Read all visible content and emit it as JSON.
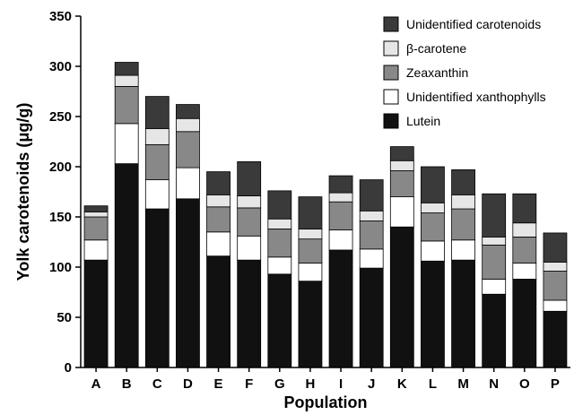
{
  "chart_data": {
    "type": "bar",
    "stacked": true,
    "xlabel": "Population",
    "ylabel": "Yolk carotenoids (μg/g)",
    "ylim": [
      0,
      350
    ],
    "yticks": [
      0,
      50,
      100,
      150,
      200,
      250,
      300,
      350
    ],
    "legend_position": "top-right",
    "categories": [
      "A",
      "B",
      "C",
      "D",
      "E",
      "F",
      "G",
      "H",
      "I",
      "J",
      "K",
      "L",
      "M",
      "N",
      "O",
      "P"
    ],
    "series": [
      {
        "name": "Lutein",
        "color": "#111111",
        "values": [
          107,
          203,
          158,
          168,
          111,
          107,
          93,
          86,
          117,
          99,
          140,
          106,
          107,
          73,
          88,
          56
        ]
      },
      {
        "name": "Unidentified xanthophylls",
        "color": "#ffffff",
        "values": [
          20,
          40,
          29,
          31,
          24,
          24,
          17,
          18,
          20,
          19,
          30,
          20,
          20,
          15,
          16,
          11
        ]
      },
      {
        "name": "Zeaxanthin",
        "color": "#888888",
        "values": [
          23,
          37,
          35,
          36,
          25,
          28,
          28,
          24,
          28,
          28,
          26,
          28,
          31,
          34,
          26,
          29
        ]
      },
      {
        "name": "β-carotene",
        "color": "#e6e6e6",
        "values": [
          5,
          11,
          16,
          13,
          12,
          12,
          10,
          10,
          9,
          10,
          10,
          10,
          14,
          8,
          14,
          9
        ]
      },
      {
        "name": "Unidentified carotenoids",
        "color": "#3a3a3a",
        "values": [
          6,
          13,
          32,
          14,
          23,
          34,
          28,
          32,
          17,
          31,
          14,
          36,
          25,
          43,
          29,
          29
        ]
      }
    ]
  }
}
